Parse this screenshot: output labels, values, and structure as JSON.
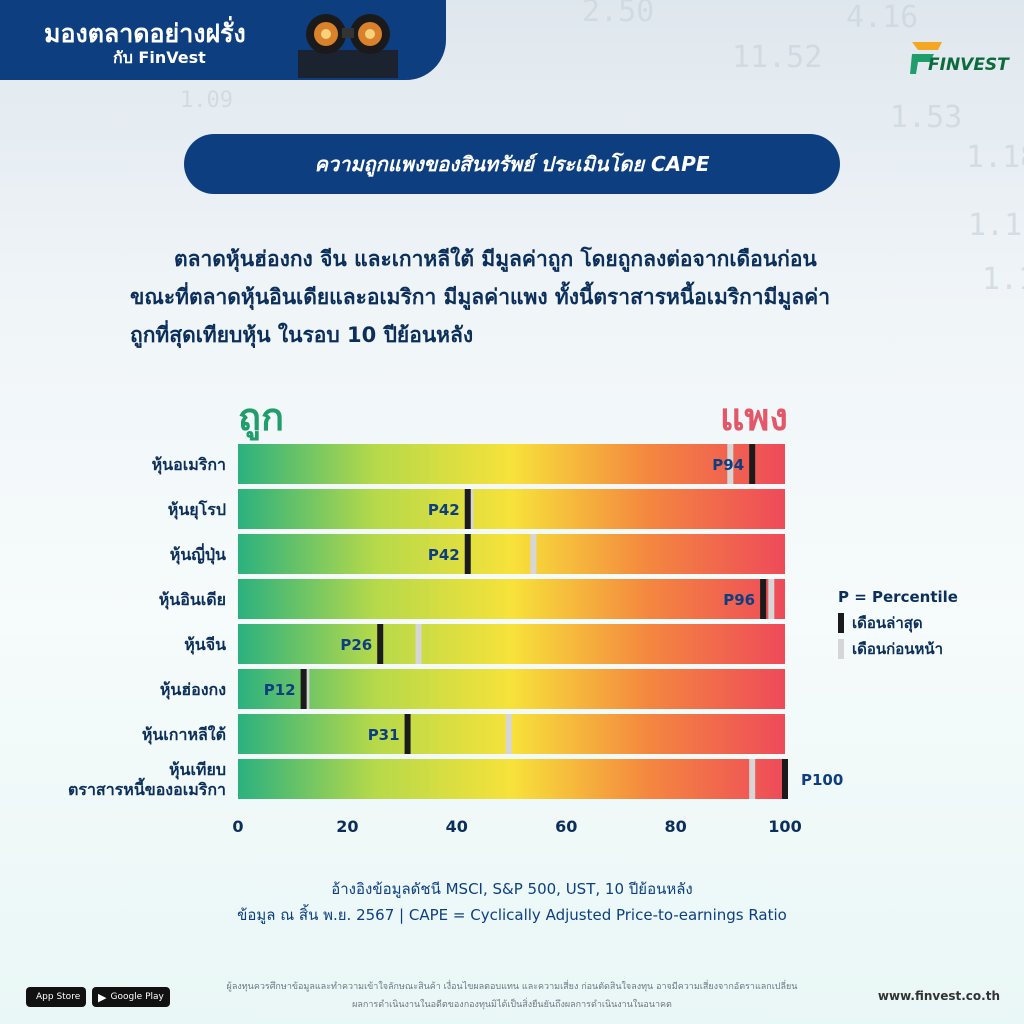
{
  "banner": {
    "title": "มองตลาดอย่างฝรั่ง",
    "subtitle": "กับ FinVest"
  },
  "logo": {
    "text": "FINVEST"
  },
  "heading": "ความถูกแพงของสินทรัพย์ ประเมินโดย CAPE",
  "intro": [
    "ตลาดหุ้นฮ่องกง จีน และเกาหลีใต้ มีมูลค่าถูก โดยถูกลงต่อจากเดือนก่อน",
    "ขณะที่ตลาดหุ้นอินเดียและอเมริกา มีมูลค่าแพง ทั้งนี้ตราสารหนี้อเมริกามีมูลค่า",
    "ถูกที่สุดเทียบหุ้น ในรอบ 10 ปีย้อนหลัง"
  ],
  "scale_labels": {
    "cheap": "ถูก",
    "expensive": "แพง"
  },
  "chart_data": {
    "type": "bar",
    "orientation": "horizontal",
    "categories": [
      "หุ้นอเมริกา",
      "หุ้นยุโรป",
      "หุ้นญี่ปุ่น",
      "หุ้นอินเดีย",
      "หุ้นจีน",
      "หุ้นฮ่องกง",
      "หุ้นเกาหลีใต้",
      "หุ้นเทียบ\nตราสารหนี้ของอเมริกา"
    ],
    "series": [
      {
        "name": "เดือนล่าสุด",
        "values": [
          94,
          42,
          42,
          96,
          26,
          12,
          31,
          100
        ]
      },
      {
        "name": "เดือนก่อนหน้า",
        "values": [
          90,
          42.5,
          54,
          97.5,
          33,
          12.5,
          49.5,
          94
        ]
      }
    ],
    "data_labels": [
      "P94",
      "P42",
      "P42",
      "P96",
      "P26",
      "P12",
      "P31",
      "P100"
    ],
    "xlim": [
      0,
      100
    ],
    "xticks": [
      0,
      20,
      40,
      60,
      80,
      100
    ],
    "gradient_colors": [
      "#2bb17f",
      "#b5d94a",
      "#f7e23a",
      "#f4873f",
      "#ee4a5a"
    ],
    "latest_color": "#1b1b1b",
    "previous_color": "#d6d6d6"
  },
  "legend": {
    "note": "P = Percentile",
    "latest": "เดือนล่าสุด",
    "previous": "เดือนก่อนหน้า"
  },
  "source": {
    "line1": "อ้างอิงข้อมูลดัชนี MSCI, S&P 500, UST, 10 ปีย้อนหลัง",
    "line2": "ข้อมูล ณ สิ้น พ.ย. 2567 | CAPE = Cyclically Adjusted Price-to-earnings Ratio"
  },
  "disclaimer": {
    "line1": "ผู้ลงทุนควรศึกษาข้อมูลและทำความเข้าใจลักษณะสินค้า เงื่อนไขผลตอบแทน และความเสี่ยง ก่อนตัดสินใจลงทุน อาจมีความเสี่ยงจากอัตราแลกเปลี่ยน",
    "line2": "ผลการดำเนินงานในอดีตของกองทุนมิได้เป็นสิ่งยืนยันถึงผลการดำเนินงานในอนาคต"
  },
  "stores": {
    "appstore": "App Store",
    "googleplay": "Google Play"
  },
  "website": "www.finvest.co.th"
}
